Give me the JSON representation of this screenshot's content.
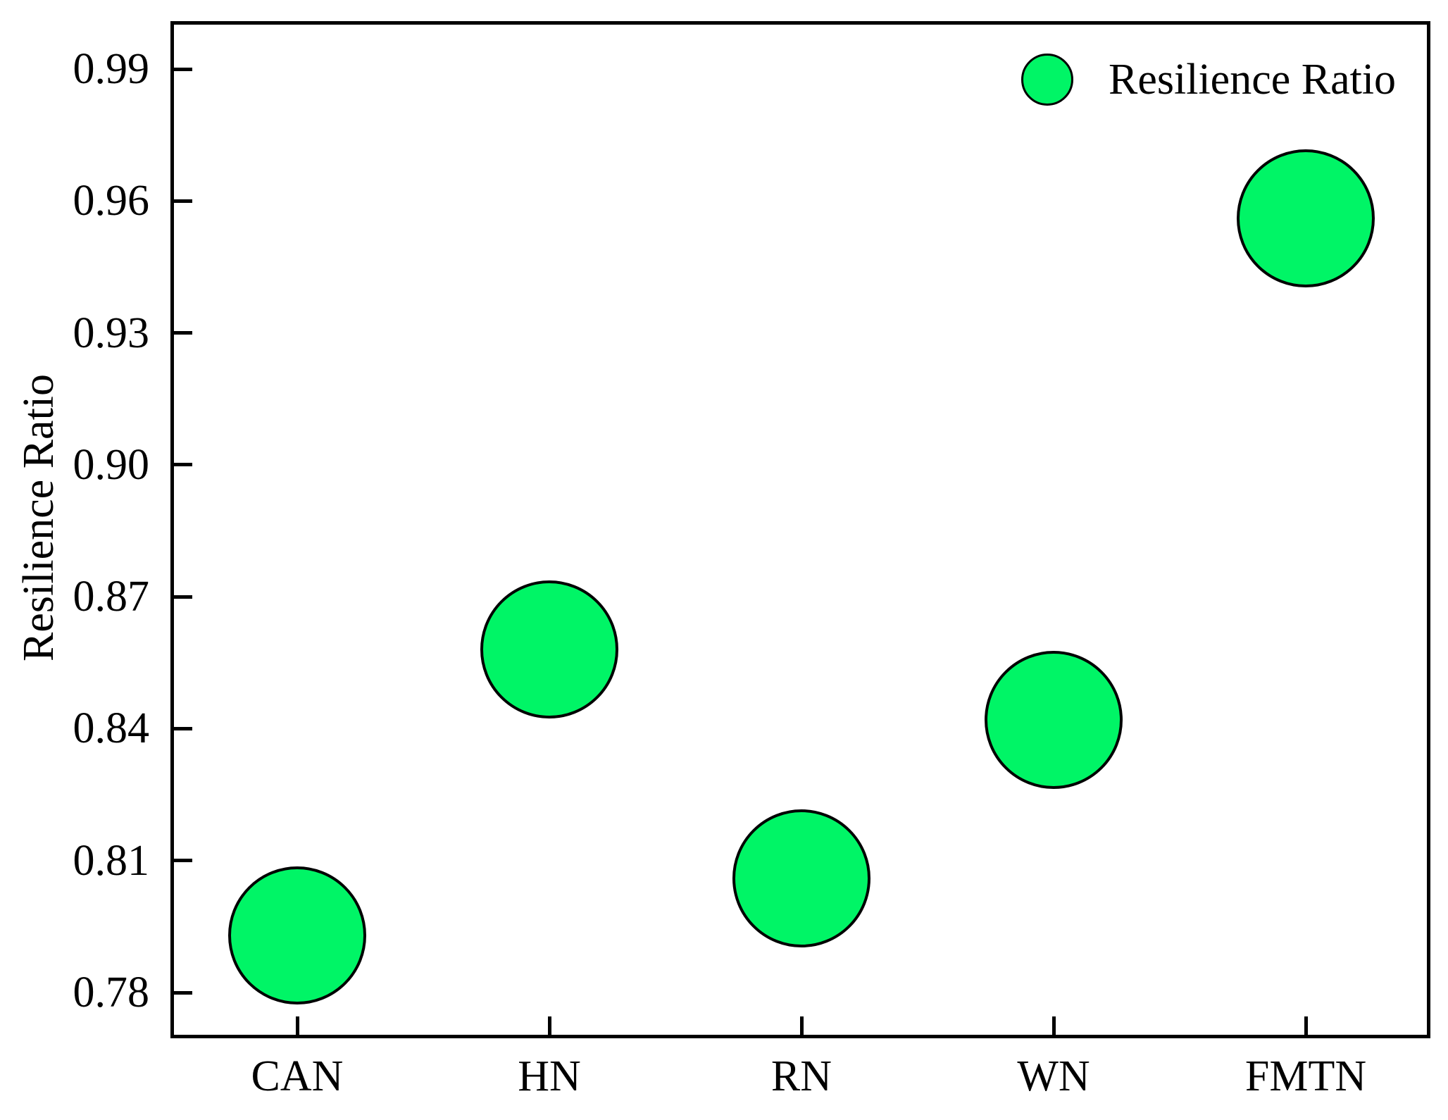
{
  "colors": {
    "background": "#ffffff",
    "axis": "#000000",
    "marker_fill": "#00F566",
    "marker_stroke": "#000000"
  },
  "chart_data": {
    "type": "scatter",
    "title": "",
    "xlabel": "",
    "ylabel": "Resilience Ratio",
    "categories": [
      "CAN",
      "HN",
      "RN",
      "WN",
      "FMTN"
    ],
    "series": [
      {
        "name": "Resilience Ratio",
        "values": [
          0.793,
          0.858,
          0.806,
          0.842,
          0.956
        ]
      }
    ],
    "marker": {
      "shape": "circle",
      "fill": "#00F566",
      "stroke": "#000000"
    },
    "yticks": [
      0.78,
      0.81,
      0.84,
      0.87,
      0.9,
      0.93,
      0.96,
      0.99
    ],
    "ytick_labels": [
      "0.78",
      "0.81",
      "0.84",
      "0.87",
      "0.90",
      "0.93",
      "0.96",
      "0.99"
    ],
    "ylim": [
      0.77,
      1.001
    ],
    "grid": false,
    "legend": {
      "position": "upper right",
      "label": "Resilience Ratio"
    }
  }
}
